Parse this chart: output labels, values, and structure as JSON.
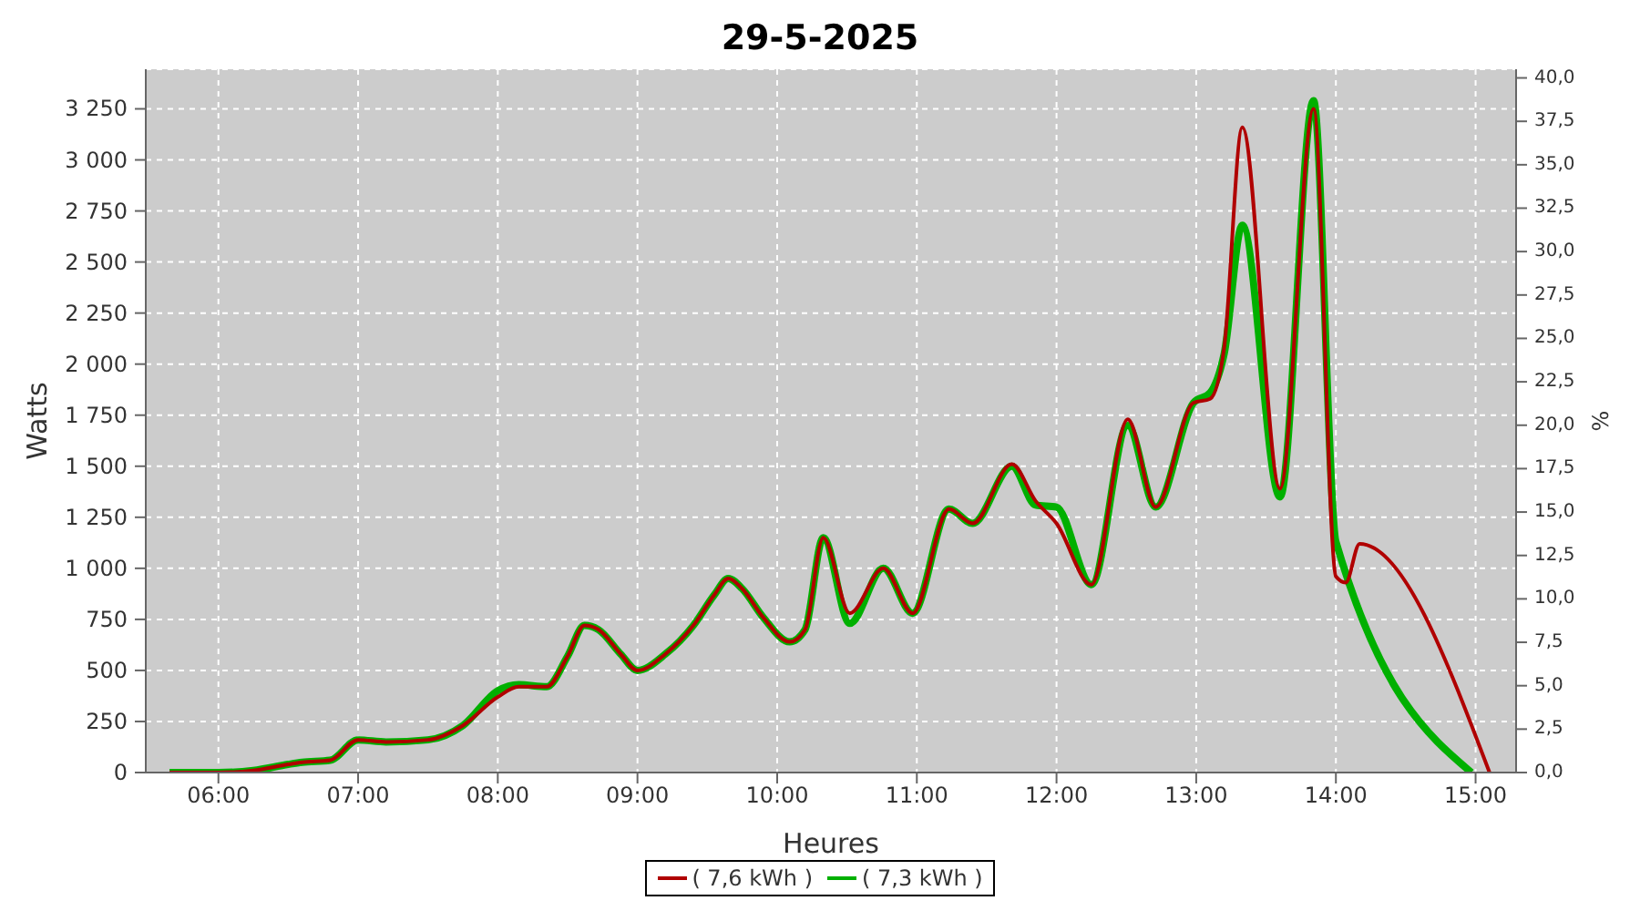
{
  "chart_data": {
    "type": "line",
    "title": "29-5-2025",
    "xlabel": "Heures",
    "ylabel": "Watts",
    "y2label": "%",
    "xlim": [
      5.48,
      15.29
    ],
    "xticks": [
      {
        "value": 6,
        "label": "06:00"
      },
      {
        "value": 7,
        "label": "07:00"
      },
      {
        "value": 8,
        "label": "08:00"
      },
      {
        "value": 9,
        "label": "09:00"
      },
      {
        "value": 10,
        "label": "10:00"
      },
      {
        "value": 11,
        "label": "11:00"
      },
      {
        "value": 12,
        "label": "12:00"
      },
      {
        "value": 13,
        "label": "13:00"
      },
      {
        "value": 14,
        "label": "14:00"
      },
      {
        "value": 15,
        "label": "15:00"
      }
    ],
    "ylim": [
      0,
      3444
    ],
    "yticks": [
      0,
      250,
      500,
      750,
      {
        "value": 1000,
        "label": "1 000"
      },
      {
        "value": 1250,
        "label": "1 250"
      },
      {
        "value": 1500,
        "label": "1 500"
      },
      {
        "value": 1750,
        "label": "1 750"
      },
      {
        "value": 2000,
        "label": "2 000"
      },
      {
        "value": 2250,
        "label": "2 250"
      },
      {
        "value": 2500,
        "label": "2 500"
      },
      {
        "value": 2750,
        "label": "2 750"
      },
      {
        "value": 3000,
        "label": "3 000"
      },
      {
        "value": 3250,
        "label": "3 250"
      }
    ],
    "y2lim": [
      0,
      40.5
    ],
    "y2ticks": [
      {
        "value": 0,
        "label": "0,0"
      },
      {
        "value": 2.5,
        "label": "2,5"
      },
      {
        "value": 5,
        "label": "5,0"
      },
      {
        "value": 7.5,
        "label": "7,5"
      },
      {
        "value": 10,
        "label": "10,0"
      },
      {
        "value": 12.5,
        "label": "12,5"
      },
      {
        "value": 15,
        "label": "15,0"
      },
      {
        "value": 17.5,
        "label": "17,5"
      },
      {
        "value": 20,
        "label": "20,0"
      },
      {
        "value": 22.5,
        "label": "22,5"
      },
      {
        "value": 25,
        "label": "25,0"
      },
      {
        "value": 27.5,
        "label": "27,5"
      },
      {
        "value": 30,
        "label": "30,0"
      },
      {
        "value": 32.5,
        "label": "32,5"
      },
      {
        "value": 35,
        "label": "35,0"
      },
      {
        "value": 37.5,
        "label": "37,5"
      },
      {
        "value": 40,
        "label": "40,0"
      }
    ],
    "grid": true,
    "legend": "bottom",
    "marker": "none",
    "line_style": "solid",
    "series": [
      {
        "name": "( 7,6 kWh )",
        "color": "#b00000",
        "x": [
          5.65,
          6,
          6.25,
          6.5,
          6.6,
          6.8,
          7,
          7.2,
          7.5,
          7.75,
          8,
          8.15,
          8.35,
          8.5,
          8.62,
          8.72,
          8.88,
          9,
          9.2,
          9.4,
          9.55,
          9.65,
          9.75,
          9.9,
          10.09,
          10.2,
          10.33,
          10.52,
          10.76,
          10.97,
          11.23,
          11.4,
          11.68,
          11.85,
          12,
          12.25,
          12.51,
          12.71,
          12.98,
          13.1,
          13.2,
          13.33,
          13.6,
          13.84,
          14,
          14.07,
          14.17,
          15.1
        ],
        "values": [
          0,
          0,
          10,
          40,
          50,
          60,
          160,
          150,
          160,
          230,
          370,
          420,
          420,
          570,
          720,
          700,
          580,
          500,
          580,
          720,
          870,
          950,
          900,
          760,
          640,
          700,
          1150,
          780,
          1000,
          780,
          1290,
          1220,
          1510,
          1330,
          1220,
          920,
          1730,
          1300,
          1810,
          1830,
          2080,
          3160,
          1390,
          3250,
          960,
          930,
          1120,
          0
        ]
      },
      {
        "name": "( 7,3 kWh )",
        "color": "#00b000",
        "x": [
          5.65,
          6,
          6.25,
          6.5,
          6.6,
          6.8,
          7,
          7.2,
          7.5,
          7.75,
          8,
          8.15,
          8.35,
          8.5,
          8.62,
          8.72,
          8.88,
          9,
          9.2,
          9.4,
          9.55,
          9.65,
          9.75,
          9.9,
          10.09,
          10.2,
          10.33,
          10.52,
          10.76,
          10.97,
          11.23,
          11.4,
          11.68,
          11.85,
          12,
          12.25,
          12.51,
          12.71,
          12.98,
          13.1,
          13.2,
          13.33,
          13.6,
          13.84,
          14,
          14.97
        ],
        "values": [
          0,
          0,
          10,
          40,
          50,
          60,
          160,
          150,
          160,
          230,
          400,
          430,
          420,
          570,
          720,
          700,
          580,
          500,
          580,
          720,
          870,
          950,
          900,
          760,
          640,
          700,
          1150,
          730,
          1000,
          780,
          1290,
          1220,
          1500,
          1310,
          1300,
          920,
          1700,
          1300,
          1810,
          1860,
          2050,
          2680,
          1350,
          3290,
          1130,
          0
        ]
      }
    ]
  }
}
